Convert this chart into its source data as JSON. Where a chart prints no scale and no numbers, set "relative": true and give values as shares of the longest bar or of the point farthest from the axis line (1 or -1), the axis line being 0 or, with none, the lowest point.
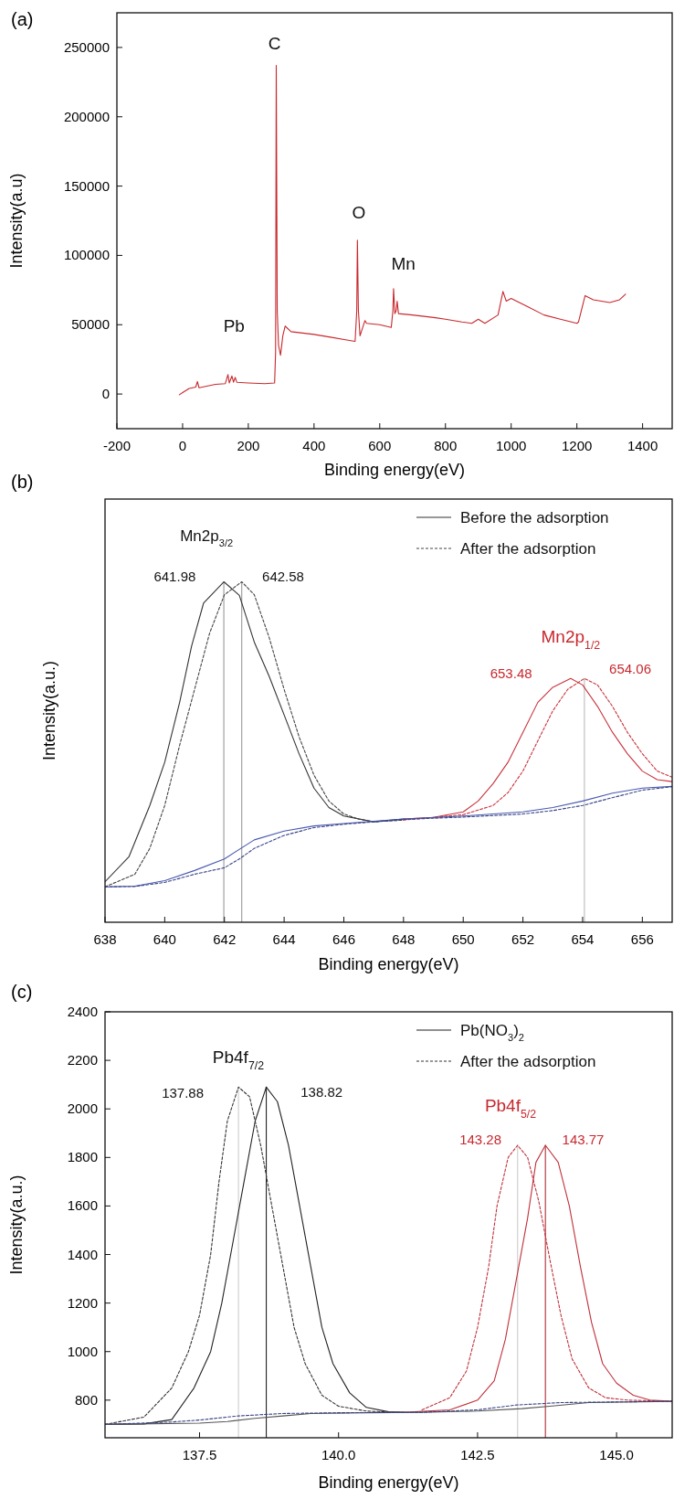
{
  "chart_data": [
    {
      "type": "line",
      "title": "(a)",
      "xlabel": "Binding energy(eV)",
      "ylabel": "Intensity(a.u)",
      "xlim": [
        -200,
        1490
      ],
      "ylim": [
        -25000,
        275000
      ],
      "xticks": [
        -200,
        0,
        200,
        400,
        600,
        800,
        1000,
        1200,
        1400
      ],
      "yticks": [
        0,
        50000,
        100000,
        150000,
        200000,
        250000
      ],
      "series": [
        {
          "color": "#c8282d",
          "line_style": "solid",
          "x": [
            -10,
            0,
            20,
            40,
            45,
            50,
            80,
            100,
            130,
            138,
            142,
            150,
            155,
            160,
            165,
            200,
            250,
            280,
            283,
            285,
            288,
            292,
            298,
            305,
            312,
            330,
            400,
            450,
            500,
            525,
            530,
            532,
            535,
            540,
            555,
            560,
            600,
            635,
            640,
            642,
            646,
            650,
            653,
            657,
            700,
            770,
            800,
            850,
            880,
            900,
            920,
            960,
            975,
            985,
            1000,
            1050,
            1100,
            1150,
            1200,
            1205,
            1225,
            1250,
            1300,
            1330,
            1348
          ],
          "values": [
            -500,
            1000,
            4000,
            5000,
            9000,
            4500,
            6000,
            7000,
            7500,
            14000,
            8000,
            13000,
            8500,
            12000,
            8500,
            8000,
            7500,
            8000,
            30000,
            237000,
            60000,
            35000,
            28000,
            42000,
            49000,
            45000,
            43000,
            41000,
            39000,
            38000,
            60000,
            111000,
            60000,
            42000,
            53000,
            51000,
            50000,
            48000,
            60000,
            76000,
            58000,
            60000,
            67000,
            58000,
            57000,
            55000,
            54000,
            52000,
            51000,
            54000,
            51000,
            57000,
            74000,
            67000,
            69000,
            63000,
            57000,
            54000,
            51000,
            52000,
            71000,
            68000,
            66000,
            68000,
            72000
          ]
        }
      ],
      "annotations": [
        "C",
        "O",
        "Mn",
        "Pb"
      ]
    },
    {
      "type": "line",
      "title": "(b)",
      "xlabel": "Binding energy(eV)",
      "ylabel": "Intensity(a.u.)",
      "relative": true,
      "xlim": [
        638,
        657
      ],
      "xticks": [
        638,
        640,
        642,
        644,
        646,
        648,
        650,
        652,
        654,
        656
      ],
      "legend": "top right",
      "series": [
        {
          "color": "#999999",
          "line_style": "solid",
          "x": [
            641.98,
            641.98
          ],
          "values": [
            0,
            1
          ]
        },
        {
          "color": "#999999",
          "line_style": "solid",
          "x": [
            642.58,
            642.58
          ],
          "values": [
            0,
            1
          ]
        },
        {
          "color": "#bbbbbb",
          "line_style": "solid",
          "x": [
            654.06,
            654.06
          ],
          "values": [
            0,
            0.716
          ]
        },
        {
          "name": "Before the adsorption",
          "color": "#333333",
          "line_style": "solid",
          "x": [
            638,
            638.8,
            639.5,
            640,
            640.5,
            640.9,
            641.3,
            641.98,
            642.5,
            643,
            643.5,
            644,
            644.5,
            645,
            645.5,
            646,
            647,
            648
          ],
          "values": [
            0.119,
            0.192,
            0.343,
            0.47,
            0.646,
            0.811,
            0.937,
            1,
            0.96,
            0.823,
            0.722,
            0.609,
            0.495,
            0.394,
            0.337,
            0.312,
            0.295,
            0.303
          ]
        },
        {
          "name": "After the adsorption",
          "color": "#444444",
          "line_style": "dashed",
          "x": [
            638,
            639,
            639.5,
            640,
            640.5,
            641,
            641.5,
            642,
            642.58,
            643,
            643.5,
            644,
            644.5,
            645,
            645.5,
            646,
            646.5,
            647,
            648
          ],
          "values": [
            0.104,
            0.141,
            0.217,
            0.343,
            0.52,
            0.684,
            0.848,
            0.962,
            1,
            0.962,
            0.836,
            0.684,
            0.545,
            0.432,
            0.356,
            0.318,
            0.303,
            0.295,
            0.3
          ]
        },
        {
          "color": "#c8323c",
          "line_style": "solid",
          "x": [
            648,
            649,
            650,
            650.5,
            651,
            651.5,
            652,
            652.5,
            653,
            653.6,
            654,
            654.5,
            655,
            655.5,
            656,
            656.5,
            657
          ],
          "values": [
            0.303,
            0.308,
            0.324,
            0.356,
            0.407,
            0.47,
            0.558,
            0.646,
            0.69,
            0.716,
            0.697,
            0.634,
            0.558,
            0.495,
            0.444,
            0.419,
            0.413
          ]
        },
        {
          "color": "#c8323c",
          "line_style": "dashed",
          "x": [
            648,
            649,
            650,
            651,
            651.5,
            652,
            652.5,
            653,
            653.5,
            654.06,
            654.5,
            655,
            655.5,
            656,
            656.5,
            657
          ],
          "values": [
            0.3,
            0.308,
            0.316,
            0.343,
            0.381,
            0.444,
            0.533,
            0.621,
            0.684,
            0.716,
            0.697,
            0.634,
            0.558,
            0.495,
            0.444,
            0.426
          ]
        },
        {
          "color": "#4a5ab0",
          "line_style": "solid",
          "x": [
            638,
            639,
            640,
            641,
            642,
            643,
            644,
            645,
            646,
            648,
            650,
            652,
            653,
            654,
            655,
            656,
            657
          ],
          "values": [
            0.104,
            0.106,
            0.122,
            0.152,
            0.186,
            0.242,
            0.268,
            0.283,
            0.29,
            0.303,
            0.312,
            0.324,
            0.337,
            0.356,
            0.379,
            0.394,
            0.399
          ]
        },
        {
          "color": "#3a4488",
          "line_style": "dashed",
          "x": [
            638,
            639,
            640,
            641,
            642,
            642.5,
            643,
            644,
            645,
            646,
            648,
            650,
            652,
            653,
            654,
            655,
            656,
            657
          ],
          "values": [
            0.104,
            0.105,
            0.117,
            0.141,
            0.16,
            0.186,
            0.217,
            0.255,
            0.278,
            0.288,
            0.302,
            0.309,
            0.318,
            0.328,
            0.343,
            0.366,
            0.388,
            0.398
          ]
        }
      ],
      "annotations": [
        "Mn2p$_{3/2}$",
        "641.98",
        "642.58",
        "Mn2p$_{1/2}$",
        "653.48",
        "654.06"
      ]
    },
    {
      "type": "line",
      "title": "(c)",
      "xlabel": "Binding energy(eV)",
      "ylabel": "Intensity(a.u.)",
      "xlim": [
        135.8,
        146
      ],
      "ylim": [
        645,
        2400
      ],
      "xticks": [
        {
          "value": 137.5,
          "label": "137.5"
        },
        {
          "value": 140,
          "label": "140.0"
        },
        {
          "value": 142.5,
          "label": "142.5"
        },
        {
          "value": 145,
          "label": "145.0"
        }
      ],
      "yticks": [
        800,
        1000,
        1200,
        1400,
        1600,
        1800,
        2000,
        2200,
        2400
      ],
      "legend": "top right",
      "series": [
        {
          "color": "#222222",
          "line_style": "solid",
          "x": [
            138.7,
            138.7
          ],
          "values": [
            645,
            2090
          ]
        },
        {
          "color": "#cccccc",
          "line_style": "solid",
          "x": [
            138.2,
            138.2
          ],
          "values": [
            645,
            2090
          ]
        },
        {
          "color": "#cccccc",
          "line_style": "solid",
          "x": [
            143.22,
            143.22
          ],
          "values": [
            645,
            1850
          ]
        },
        {
          "color": "#b02a35",
          "line_style": "solid",
          "x": [
            143.72,
            143.72
          ],
          "values": [
            645,
            1850
          ]
        },
        {
          "name": "Pb(NO$_{3}$)$_{2}$",
          "color": "#222222",
          "line_style": "solid",
          "x": [
            135.8,
            136.5,
            137,
            137.4,
            137.7,
            137.9,
            138.1,
            138.3,
            138.5,
            138.7,
            138.9,
            139.1,
            139.3,
            139.5,
            139.7,
            139.9,
            140.2,
            140.5,
            140.9,
            141.2
          ],
          "values": [
            700,
            702,
            720,
            850,
            1000,
            1200,
            1450,
            1700,
            1950,
            2090,
            2030,
            1850,
            1600,
            1350,
            1100,
            950,
            830,
            770,
            752,
            750
          ]
        },
        {
          "name": "After the adsorption",
          "color": "#333333",
          "line_style": "dashed",
          "x": [
            135.8,
            136.5,
            137,
            137.3,
            137.5,
            137.7,
            137.85,
            138.0,
            138.2,
            138.4,
            138.6,
            138.8,
            139,
            139.2,
            139.4,
            139.7,
            140,
            140.5,
            141
          ],
          "values": [
            700,
            730,
            850,
            1000,
            1150,
            1400,
            1700,
            1950,
            2090,
            2050,
            1850,
            1600,
            1350,
            1100,
            950,
            820,
            775,
            755,
            750
          ]
        },
        {
          "color": "#c0303a",
          "line_style": "solid",
          "x": [
            141.2,
            142,
            142.5,
            142.8,
            143,
            143.2,
            143.4,
            143.55,
            143.72,
            143.95,
            144.15,
            144.35,
            144.55,
            144.75,
            145,
            145.3,
            145.6,
            146
          ],
          "values": [
            750,
            760,
            800,
            880,
            1050,
            1300,
            1550,
            1780,
            1850,
            1780,
            1600,
            1350,
            1120,
            950,
            870,
            820,
            800,
            795
          ]
        },
        {
          "color": "#c0303a",
          "line_style": "dashed",
          "x": [
            141.5,
            142,
            142.3,
            142.5,
            142.7,
            142.85,
            143.05,
            143.22,
            143.4,
            143.6,
            143.8,
            144,
            144.2,
            144.5,
            144.8,
            145.2,
            146
          ],
          "values": [
            760,
            810,
            920,
            1100,
            1350,
            1600,
            1800,
            1850,
            1800,
            1620,
            1380,
            1150,
            970,
            850,
            810,
            800,
            795
          ]
        },
        {
          "color": "#555555",
          "line_style": "solid",
          "x": [
            135.8,
            137.5,
            138,
            138.5,
            139,
            139.5,
            140.5,
            141.5,
            142.5,
            143.3,
            143.8,
            144.5,
            146
          ],
          "values": [
            700,
            705,
            712,
            725,
            735,
            745,
            748,
            750,
            755,
            765,
            775,
            790,
            795
          ]
        },
        {
          "color": "#3a4488",
          "line_style": "dashed",
          "x": [
            135.8,
            137,
            137.5,
            138.2,
            139,
            140,
            141.5,
            142.5,
            143.2,
            144,
            146
          ],
          "values": [
            700,
            710,
            718,
            735,
            745,
            748,
            750,
            760,
            780,
            790,
            795
          ]
        }
      ],
      "annotations": [
        "Pb4f$_{7/2}$",
        "137.88",
        "138.82",
        "Pb4f$_{5/2}$",
        "143.28",
        "143.77"
      ]
    }
  ]
}
